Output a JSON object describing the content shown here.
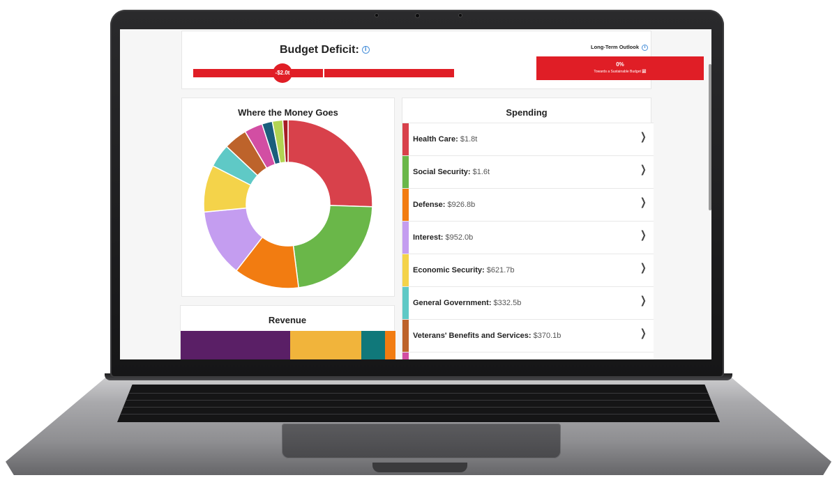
{
  "deficit": {
    "title": "Budget Deficit:",
    "badge": "-$2.0t",
    "bar_color": "#e01e26"
  },
  "outlook": {
    "title": "Long-Term Outlook",
    "percent": "0%",
    "caption": "Towards a Sustainable Budget"
  },
  "info_icon_glyph": "i",
  "money": {
    "title": "Where the Money Goes",
    "chart_data": {
      "type": "pie",
      "slices": [
        {
          "value": 25.5,
          "color": "#d8414b"
        },
        {
          "value": 22.5,
          "color": "#6ab749"
        },
        {
          "value": 12.5,
          "color": "#f27c11"
        },
        {
          "value": 13.0,
          "color": "#c49df0"
        },
        {
          "value": 9.0,
          "color": "#f4d34a"
        },
        {
          "value": 4.5,
          "color": "#5fc9c6"
        },
        {
          "value": 4.5,
          "color": "#bd632b"
        },
        {
          "value": 3.5,
          "color": "#d24ea3"
        },
        {
          "value": 2.0,
          "color": "#1a5e7c"
        },
        {
          "value": 2.0,
          "color": "#b2d453"
        },
        {
          "value": 1.0,
          "color": "#a51d26"
        }
      ]
    }
  },
  "revenue": {
    "title": "Revenue",
    "segments": [
      {
        "share": 0.51,
        "color": "#5a1f66"
      },
      {
        "share": 0.33,
        "color": "#f1b43b"
      },
      {
        "share": 0.11,
        "color": "#10787a"
      },
      {
        "share": 0.05,
        "color": "#f27c11"
      }
    ]
  },
  "spending": {
    "title": "Spending",
    "items": [
      {
        "name": "Health Care:",
        "value": "$1.8t",
        "color": "#d8414b"
      },
      {
        "name": "Social Security:",
        "value": "$1.6t",
        "color": "#6ab749"
      },
      {
        "name": "Defense:",
        "value": "$926.8b",
        "color": "#f27c11"
      },
      {
        "name": "Interest:",
        "value": "$952.0b",
        "color": "#c49df0"
      },
      {
        "name": "Economic Security:",
        "value": "$621.7b",
        "color": "#f4d34a"
      },
      {
        "name": "General Government:",
        "value": "$332.5b",
        "color": "#5fc9c6"
      },
      {
        "name": "Veterans' Benefits and Services:",
        "value": "$370.1b",
        "color": "#bd632b"
      },
      {
        "name": "",
        "value": "",
        "color": "#d24ea3"
      }
    ]
  }
}
